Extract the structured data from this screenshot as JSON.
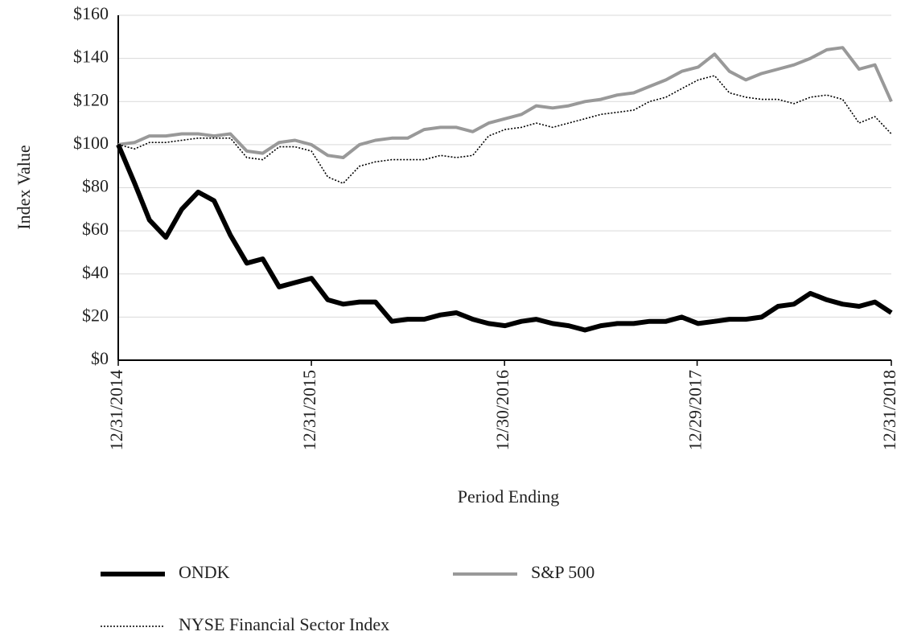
{
  "chart_data": {
    "type": "line",
    "ylabel": "Index Value",
    "xlabel": "Period Ending",
    "x": [
      "12/31/2014",
      "01/31/2015",
      "02/28/2015",
      "03/31/2015",
      "04/30/2015",
      "05/31/2015",
      "06/30/2015",
      "07/31/2015",
      "08/31/2015",
      "09/30/2015",
      "10/31/2015",
      "11/30/2015",
      "12/31/2015",
      "01/31/2016",
      "02/29/2016",
      "03/31/2016",
      "04/30/2016",
      "05/31/2016",
      "06/30/2016",
      "07/31/2016",
      "08/31/2016",
      "09/30/2016",
      "10/31/2016",
      "11/30/2016",
      "12/31/2016",
      "01/31/2017",
      "02/28/2017",
      "03/31/2017",
      "04/30/2017",
      "05/31/2017",
      "06/30/2017",
      "07/31/2017",
      "08/31/2017",
      "09/30/2017",
      "10/31/2017",
      "11/30/2017",
      "12/31/2017",
      "01/31/2018",
      "02/28/2018",
      "03/31/2018",
      "04/30/2018",
      "05/31/2018",
      "06/30/2018",
      "07/31/2018",
      "08/31/2018",
      "09/30/2018",
      "10/31/2018",
      "11/30/2018",
      "12/31/2018"
    ],
    "xlim": [
      "12/31/2014",
      "12/31/2018"
    ],
    "xticks": [
      "12/31/2014",
      "12/31/2015",
      "12/30/2016",
      "12/29/2017",
      "12/31/2018"
    ],
    "ylim": [
      0,
      160
    ],
    "yticks": [
      {
        "value": 0,
        "label": "$0"
      },
      {
        "value": 20,
        "label": "$20"
      },
      {
        "value": 40,
        "label": "$40"
      },
      {
        "value": 60,
        "label": "$60"
      },
      {
        "value": 80,
        "label": "$80"
      },
      {
        "value": 100,
        "label": "$100"
      },
      {
        "value": 120,
        "label": "$120"
      },
      {
        "value": 140,
        "label": "$140"
      },
      {
        "value": 160,
        "label": "$160"
      }
    ],
    "grid": true,
    "series": [
      {
        "name": "ONDK",
        "color": "#000000",
        "line_width": 6,
        "linestyle": "solid",
        "values": [
          100,
          82,
          65,
          57,
          70,
          78,
          74,
          58,
          45,
          47,
          34,
          36,
          38,
          28,
          26,
          27,
          27,
          18,
          19,
          19,
          21,
          22,
          19,
          17,
          16,
          18,
          19,
          17,
          16,
          14,
          16,
          17,
          17,
          18,
          18,
          20,
          17,
          18,
          19,
          19,
          20,
          25,
          26,
          31,
          28,
          26,
          25,
          27,
          22
        ]
      },
      {
        "name": "S&P 500",
        "color": "#999999",
        "line_width": 4,
        "linestyle": "solid",
        "values": [
          100,
          101,
          104,
          104,
          105,
          105,
          104,
          105,
          97,
          96,
          101,
          102,
          100,
          95,
          94,
          100,
          102,
          103,
          103,
          107,
          108,
          108,
          106,
          110,
          112,
          114,
          118,
          117,
          118,
          120,
          121,
          123,
          124,
          127,
          130,
          134,
          136,
          142,
          134,
          130,
          133,
          135,
          137,
          140,
          144,
          145,
          135,
          137,
          120
        ]
      },
      {
        "name": "NYSE Financial Sector Index",
        "color": "#000000",
        "line_width": 1.6,
        "linestyle": "dotted",
        "values": [
          100,
          98,
          101,
          101,
          102,
          103,
          103,
          103,
          94,
          93,
          99,
          99,
          97,
          85,
          82,
          90,
          92,
          93,
          93,
          93,
          95,
          94,
          95,
          104,
          107,
          108,
          110,
          108,
          110,
          112,
          114,
          115,
          116,
          120,
          122,
          126,
          130,
          132,
          124,
          122,
          121,
          121,
          119,
          122,
          123,
          121,
          110,
          113,
          105
        ]
      }
    ]
  }
}
